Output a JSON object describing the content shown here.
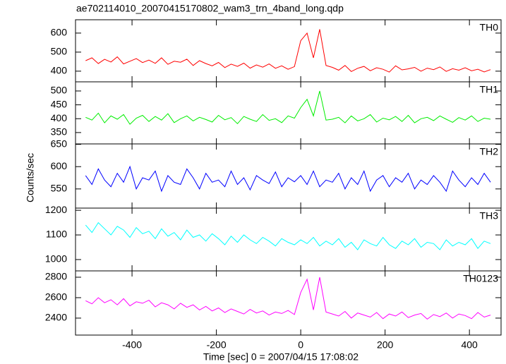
{
  "chart_data": [
    {
      "type": "line",
      "title": "ae702114010_20070415170802_wam3_trn_4band_long.qdp",
      "x": [
        -510,
        -495,
        -480,
        -465,
        -450,
        -435,
        -420,
        -405,
        -390,
        -375,
        -360,
        -345,
        -330,
        -315,
        -300,
        -285,
        -270,
        -255,
        -240,
        -225,
        -210,
        -195,
        -180,
        -165,
        -150,
        -135,
        -120,
        -105,
        -90,
        -75,
        -60,
        -45,
        -30,
        -15,
        0,
        15,
        30,
        45,
        60,
        75,
        90,
        105,
        120,
        135,
        150,
        165,
        180,
        195,
        210,
        225,
        240,
        255,
        270,
        285,
        300,
        315,
        330,
        345,
        360,
        375,
        390,
        405,
        420,
        435,
        450
      ],
      "series": [
        {
          "name": "TH0",
          "color": "#ff0000",
          "values": [
            455,
            470,
            440,
            462,
            448,
            475,
            438,
            452,
            466,
            445,
            458,
            441,
            470,
            436,
            452,
            447,
            463,
            430,
            455,
            440,
            428,
            446,
            419,
            437,
            425,
            442,
            416,
            433,
            421,
            438,
            415,
            428,
            410,
            424,
            560,
            600,
            470,
            620,
            430,
            420,
            405,
            430,
            398,
            415,
            425,
            402,
            418,
            410,
            395,
            428,
            407,
            412,
            420,
            400,
            416,
            408,
            422,
            399,
            413,
            405,
            418,
            402,
            410,
            396,
            408
          ]
        }
      ],
      "xlim": [
        -534,
        475
      ],
      "ylim": [
        344,
        670
      ],
      "yticks": [
        400,
        500,
        600
      ]
    },
    {
      "type": "line",
      "x": [
        -510,
        -495,
        -480,
        -465,
        -450,
        -435,
        -420,
        -405,
        -390,
        -375,
        -360,
        -345,
        -330,
        -315,
        -300,
        -285,
        -270,
        -255,
        -240,
        -225,
        -210,
        -195,
        -180,
        -165,
        -150,
        -135,
        -120,
        -105,
        -90,
        -75,
        -60,
        -45,
        -30,
        -15,
        0,
        15,
        30,
        45,
        60,
        75,
        90,
        105,
        120,
        135,
        150,
        165,
        180,
        195,
        210,
        225,
        240,
        255,
        270,
        285,
        300,
        315,
        330,
        345,
        360,
        375,
        390,
        405,
        420,
        435,
        450
      ],
      "series": [
        {
          "name": "TH1",
          "color": "#00ee00",
          "values": [
            405,
            395,
            420,
            385,
            410,
            398,
            415,
            380,
            402,
            412,
            390,
            408,
            395,
            418,
            386,
            400,
            410,
            392,
            405,
            397,
            388,
            412,
            396,
            404,
            382,
            408,
            398,
            390,
            415,
            394,
            400,
            386,
            410,
            402,
            440,
            470,
            410,
            500,
            395,
            398,
            405,
            385,
            410,
            392,
            400,
            415,
            388,
            402,
            396,
            408,
            390,
            412,
            385,
            400,
            405,
            393,
            410,
            398,
            387,
            404,
            395,
            410,
            390,
            402,
            398
          ]
        }
      ],
      "xlim": [
        -534,
        475
      ],
      "ylim": [
        309,
        533
      ],
      "yticks": [
        350,
        400,
        450,
        500
      ]
    },
    {
      "type": "line",
      "y_label": "Counts/sec",
      "x": [
        -510,
        -495,
        -480,
        -465,
        -450,
        -435,
        -420,
        -405,
        -390,
        -375,
        -360,
        -345,
        -330,
        -315,
        -300,
        -285,
        -270,
        -255,
        -240,
        -225,
        -210,
        -195,
        -180,
        -165,
        -150,
        -135,
        -120,
        -105,
        -90,
        -75,
        -60,
        -45,
        -30,
        -15,
        0,
        15,
        30,
        45,
        60,
        75,
        90,
        105,
        120,
        135,
        150,
        165,
        180,
        195,
        210,
        225,
        240,
        255,
        270,
        285,
        300,
        315,
        330,
        345,
        360,
        375,
        390,
        405,
        420,
        435,
        450
      ],
      "series": [
        {
          "name": "TH2",
          "color": "#0000ff",
          "values": [
            580,
            560,
            595,
            570,
            555,
            585,
            565,
            600,
            550,
            575,
            570,
            590,
            545,
            580,
            565,
            560,
            595,
            575,
            550,
            585,
            565,
            570,
            555,
            590,
            560,
            575,
            548,
            580,
            570,
            562,
            588,
            555,
            575,
            566,
            580,
            560,
            590,
            555,
            570,
            565,
            585,
            550,
            575,
            560,
            590,
            545,
            570,
            580,
            555,
            575,
            565,
            585,
            550,
            570,
            560,
            580,
            565,
            545,
            590,
            570,
            555,
            575,
            560,
            585,
            565
          ]
        }
      ],
      "xlim": [
        -534,
        475
      ],
      "ylim": [
        507,
        651
      ],
      "yticks": [
        550,
        600,
        650
      ]
    },
    {
      "type": "line",
      "x": [
        -510,
        -495,
        -480,
        -465,
        -450,
        -435,
        -420,
        -405,
        -390,
        -375,
        -360,
        -345,
        -330,
        -315,
        -300,
        -285,
        -270,
        -255,
        -240,
        -225,
        -210,
        -195,
        -180,
        -165,
        -150,
        -135,
        -120,
        -105,
        -90,
        -75,
        -60,
        -45,
        -30,
        -15,
        0,
        15,
        30,
        45,
        60,
        75,
        90,
        105,
        120,
        135,
        150,
        165,
        180,
        195,
        210,
        225,
        240,
        255,
        270,
        285,
        300,
        315,
        330,
        345,
        360,
        375,
        390,
        405,
        420,
        435,
        450
      ],
      "series": [
        {
          "name": "TH3",
          "color": "#00ffff",
          "values": [
            1140,
            1110,
            1150,
            1125,
            1100,
            1135,
            1120,
            1090,
            1130,
            1105,
            1115,
            1085,
            1125,
            1095,
            1110,
            1080,
            1120,
            1090,
            1100,
            1075,
            1105,
            1085,
            1060,
            1095,
            1070,
            1100,
            1080,
            1065,
            1090,
            1075,
            1055,
            1085,
            1070,
            1060,
            1080,
            1065,
            1090,
            1055,
            1075,
            1060,
            1085,
            1050,
            1070,
            1040,
            1080,
            1065,
            1055,
            1090,
            1060,
            1045,
            1075,
            1060,
            1085,
            1050,
            1070,
            1065,
            1040,
            1080,
            1055,
            1070,
            1060,
            1085,
            1045,
            1075,
            1065
          ]
        }
      ],
      "xlim": [
        -534,
        475
      ],
      "ylim": [
        954,
        1209
      ],
      "yticks": [
        1000,
        1100,
        1200
      ]
    },
    {
      "type": "line",
      "x_label": "Time [sec] 0 = 2007/04/15 17:08:02",
      "x": [
        -510,
        -495,
        -480,
        -465,
        -450,
        -435,
        -420,
        -405,
        -390,
        -375,
        -360,
        -345,
        -330,
        -315,
        -300,
        -285,
        -270,
        -255,
        -240,
        -225,
        -210,
        -195,
        -180,
        -165,
        -150,
        -135,
        -120,
        -105,
        -90,
        -75,
        -60,
        -45,
        -30,
        -15,
        0,
        15,
        30,
        45,
        60,
        75,
        90,
        105,
        120,
        135,
        150,
        165,
        180,
        195,
        210,
        225,
        240,
        255,
        270,
        285,
        300,
        315,
        330,
        345,
        360,
        375,
        390,
        405,
        420,
        435,
        450
      ],
      "series": [
        {
          "name": "TH0123",
          "color": "#ff00ff",
          "values": [
            2570,
            2540,
            2600,
            2550,
            2580,
            2530,
            2590,
            2520,
            2560,
            2545,
            2575,
            2510,
            2550,
            2530,
            2490,
            2545,
            2505,
            2530,
            2480,
            2515,
            2470,
            2500,
            2455,
            2490,
            2465,
            2440,
            2485,
            2450,
            2470,
            2430,
            2460,
            2445,
            2475,
            2435,
            2650,
            2780,
            2480,
            2800,
            2460,
            2440,
            2420,
            2465,
            2400,
            2450,
            2430,
            2410,
            2455,
            2395,
            2440,
            2420,
            2460,
            2405,
            2430,
            2445,
            2390,
            2435,
            2415,
            2450,
            2400,
            2440,
            2425,
            2395,
            2455,
            2410,
            2430
          ]
        }
      ],
      "xlim": [
        -534,
        475
      ],
      "ylim": [
        2234,
        2862
      ],
      "yticks": [
        2400,
        2600,
        2800
      ],
      "xticks": [
        -400,
        -200,
        0,
        200,
        400
      ]
    }
  ]
}
